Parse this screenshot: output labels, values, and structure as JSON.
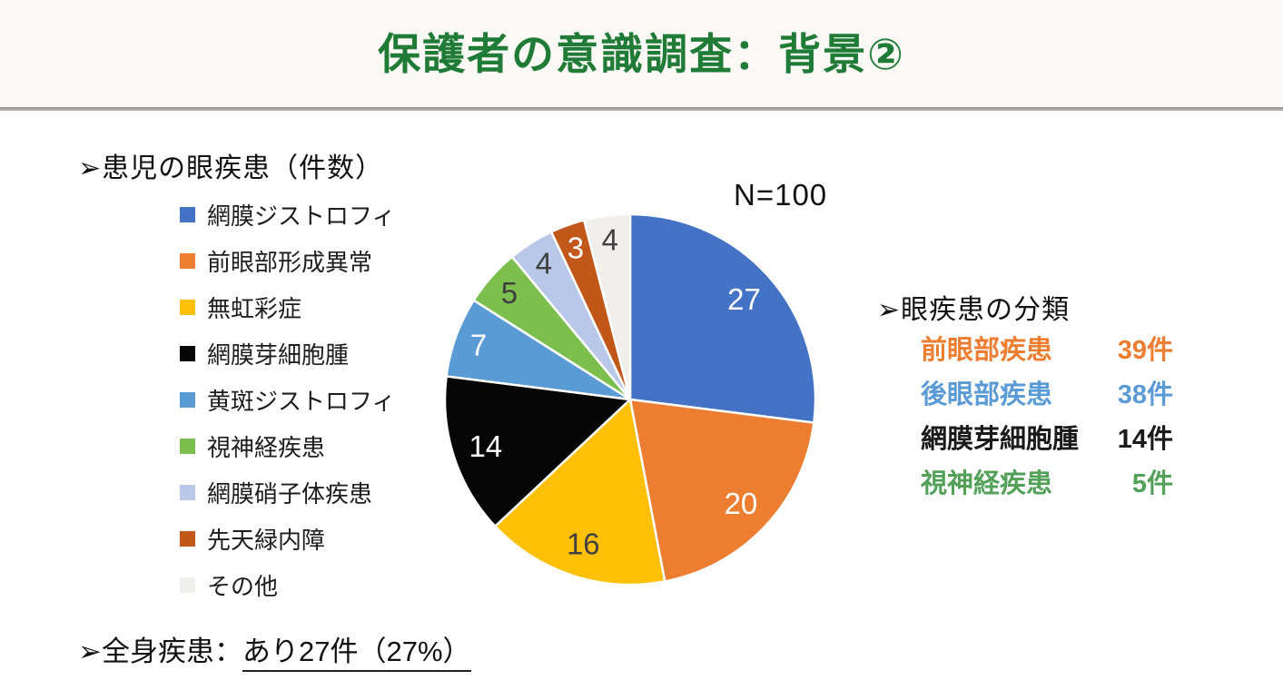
{
  "header": {
    "title": "保護者の意識調査：背景②"
  },
  "legend": {
    "heading": "➢患児の眼疾患（件数）"
  },
  "chart_data": {
    "type": "pie",
    "n_label": "N=100",
    "total": 100,
    "start_angle_deg": 0,
    "direction": "clockwise",
    "title": "患児の眼疾患（件数）",
    "slices": [
      {
        "label": "網膜ジストロフィ",
        "value": 27,
        "color": "#4472C4",
        "label_color": "#FFFFFF"
      },
      {
        "label": "前眼部形成異常",
        "value": 20,
        "color": "#ED7D31",
        "label_color": "#FFFFFF"
      },
      {
        "label": "無虹彩症",
        "value": 16,
        "color": "#FFC008",
        "label_color": "#404040"
      },
      {
        "label": "網膜芽細胞腫",
        "value": 14,
        "color": "#060606",
        "label_color": "#FFFFFF"
      },
      {
        "label": "黄斑ジストロフィ",
        "value": 7,
        "color": "#5B9BD5",
        "label_color": "#FFFFFF"
      },
      {
        "label": "視神経疾患",
        "value": 5,
        "color": "#7DBF4E",
        "label_color": "#404040"
      },
      {
        "label": "網膜硝子体疾患",
        "value": 4,
        "color": "#B9C7E8",
        "label_color": "#404040"
      },
      {
        "label": "先天緑内障",
        "value": 3,
        "color": "#C2571A",
        "label_color": "#FFFFFF"
      },
      {
        "label": "その他",
        "value": 4,
        "color": "#F0EFEC",
        "label_color": "#404040"
      }
    ]
  },
  "classification": {
    "heading": "➢眼疾患の分類",
    "rows": [
      {
        "name": "前眼部疾患",
        "count": "39件",
        "color": "#ED7D31"
      },
      {
        "name": "後眼部疾患",
        "count": "38件",
        "color": "#5B9BD5"
      },
      {
        "name": "網膜芽細胞腫",
        "count": "14件",
        "color": "#1A1A1A"
      },
      {
        "name": "視神経疾患",
        "count": "5件",
        "color": "#53A158"
      }
    ]
  },
  "footnote": {
    "prefix": "➢全身疾患：",
    "underlined": "あり27件（27%）"
  }
}
